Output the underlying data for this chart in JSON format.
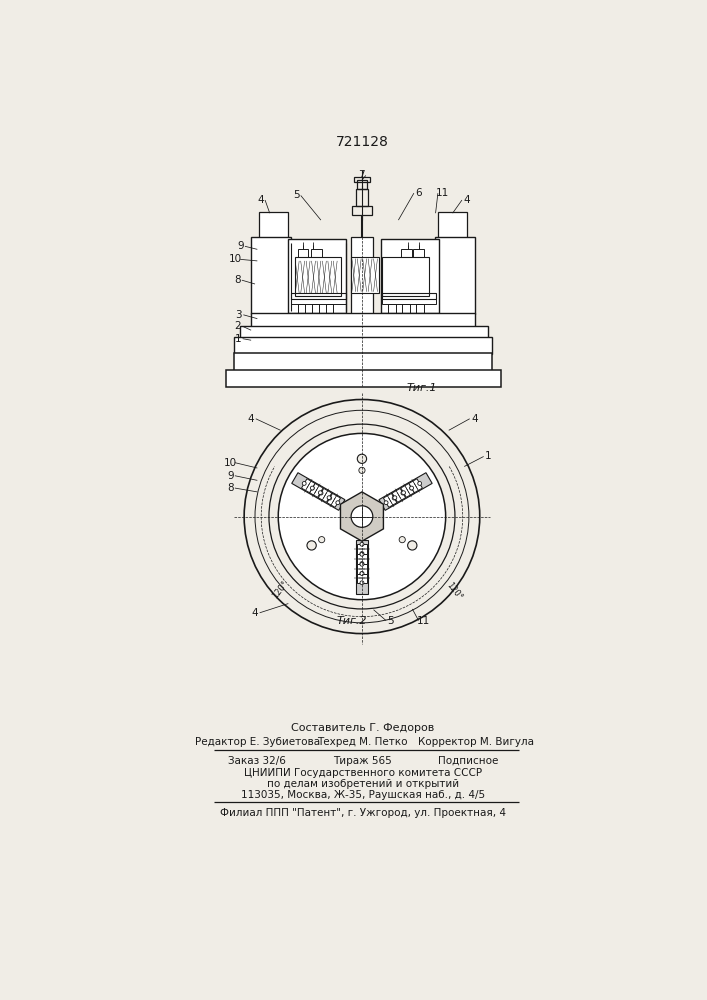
{
  "patent_number": "721128",
  "bg": "#f0ede6",
  "lc": "#1a1a1a",
  "fig1_label": "Τиг.1",
  "fig2_label": "Τиг.2",
  "footer_line1": "Составитель Г. Федоров",
  "footer_line2_l": "Редактор Е. Зубиетова",
  "footer_line2_m": "Техред М. Петко",
  "footer_line2_r": "Корректор М. Вигула",
  "footer_line3_l": "Заказ 32/6",
  "footer_line3_m": "Тираж 565",
  "footer_line3_r": "Подписное",
  "footer_line4": "ЦНИИПИ Государственного комитета СССР",
  "footer_line5": "по делам изобретений и открытий",
  "footer_line6": "113035, Москва, Ж-35, Раушская наб., д. 4/5",
  "footer_line7": "Филиал ППП \"Патент\", г. Ужгород, ул. Проектная, 4"
}
